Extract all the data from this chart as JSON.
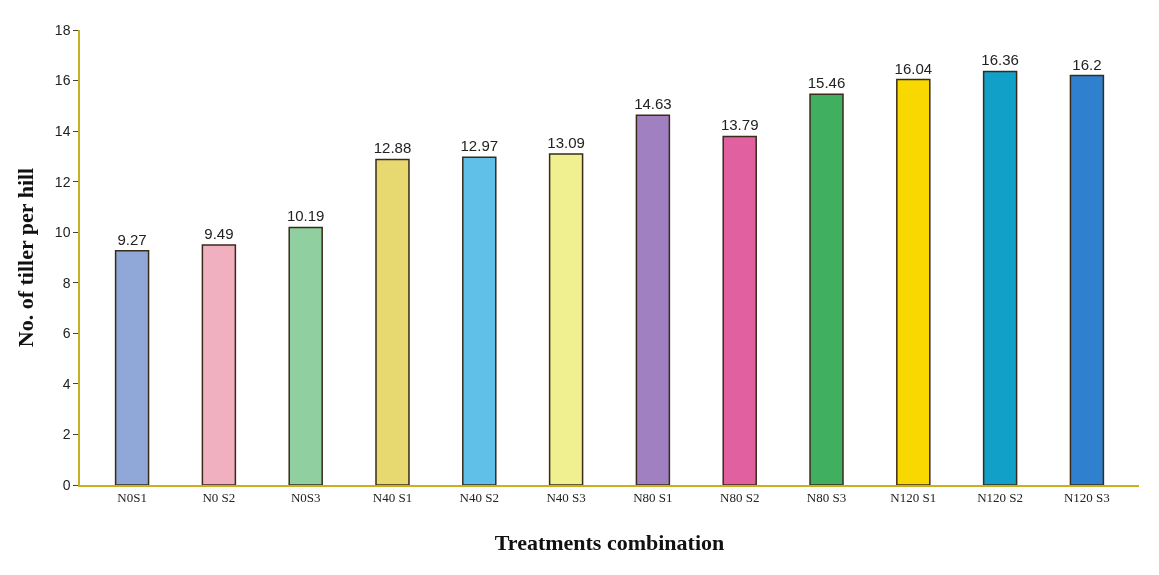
{
  "chart_data": {
    "type": "bar",
    "xlabel": "Treatments combination",
    "ylabel": "No. of tiller per hill",
    "categories": [
      "N0S1",
      "N0 S2",
      "N0S3",
      "N40 S1",
      "N40 S2",
      "N40 S3",
      "N80 S1",
      "N80 S2",
      "N80 S3",
      "N120 S1",
      "N120 S2",
      "N120 S3"
    ],
    "values": [
      9.27,
      9.49,
      10.19,
      12.88,
      12.97,
      13.09,
      14.63,
      13.79,
      15.46,
      16.04,
      16.36,
      16.2
    ],
    "colors": [
      "#8fa8d8",
      "#f0b0c0",
      "#90d0a0",
      "#e8d870",
      "#60c0e8",
      "#f0f090",
      "#a080c0",
      "#e060a0",
      "#40b060",
      "#f8d800",
      "#10a0c8",
      "#3080d0"
    ],
    "ylim": [
      0,
      18
    ],
    "yticks": [
      0,
      2,
      4,
      6,
      8,
      10,
      12,
      14,
      16,
      18
    ],
    "legend": false,
    "data_labels": true
  }
}
